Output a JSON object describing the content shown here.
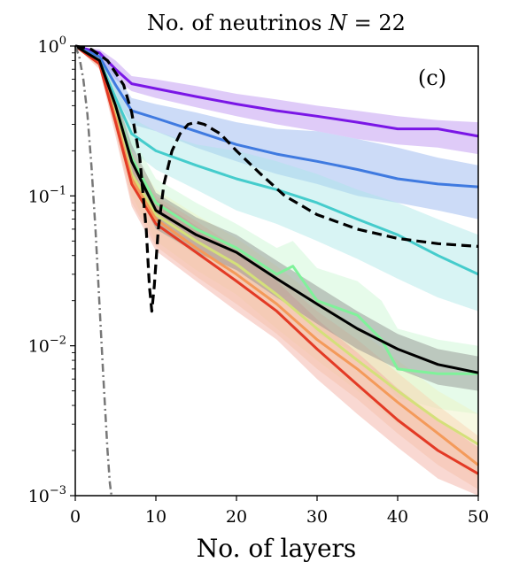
{
  "chart_data": {
    "type": "line",
    "title": "No. of neutrinos N = 22",
    "title_parts": {
      "prefix": "No. of neutrinos ",
      "var": "N",
      "suffix": " = 22"
    },
    "panel_label": "(c)",
    "xlabel": "No. of layers",
    "ylabel": "",
    "xlim": [
      0,
      50
    ],
    "ylim": [
      0.001,
      1
    ],
    "yscale": "log",
    "grid": false,
    "x_ticks": [
      0,
      10,
      20,
      30,
      40,
      50
    ],
    "x_tick_labels": [
      "0",
      "10",
      "20",
      "30",
      "40",
      "50"
    ],
    "y_ticks": [
      {
        "value": 1,
        "base": "10",
        "exp": "0"
      },
      {
        "value": 0.1,
        "base": "10",
        "exp": "−1"
      },
      {
        "value": 0.01,
        "base": "10",
        "exp": "−2"
      },
      {
        "value": 0.001,
        "base": "10",
        "exp": "−3"
      }
    ],
    "series": [
      {
        "color": "#7a16e6",
        "style": "solid",
        "band_color": "#b98cf0",
        "x": [
          0,
          3,
          5,
          7,
          10,
          15,
          20,
          25,
          30,
          35,
          40,
          45,
          50
        ],
        "y": [
          1,
          0.9,
          0.7,
          0.56,
          0.52,
          0.46,
          0.41,
          0.37,
          0.34,
          0.31,
          0.28,
          0.28,
          0.25
        ],
        "lower": [
          1,
          0.85,
          0.6,
          0.5,
          0.45,
          0.39,
          0.34,
          0.3,
          0.27,
          0.24,
          0.22,
          0.21,
          0.19
        ],
        "upper": [
          1,
          0.95,
          0.8,
          0.63,
          0.6,
          0.54,
          0.48,
          0.44,
          0.4,
          0.37,
          0.34,
          0.32,
          0.31
        ]
      },
      {
        "color": "#3f7ae0",
        "style": "solid",
        "band_color": "#8fb0ee",
        "x": [
          0,
          3,
          5,
          7,
          10,
          15,
          20,
          25,
          30,
          35,
          40,
          45,
          50
        ],
        "y": [
          1,
          0.85,
          0.55,
          0.37,
          0.33,
          0.27,
          0.22,
          0.19,
          0.17,
          0.15,
          0.13,
          0.12,
          0.115
        ],
        "lower": [
          1,
          0.8,
          0.45,
          0.3,
          0.27,
          0.21,
          0.17,
          0.14,
          0.12,
          0.1,
          0.09,
          0.08,
          0.07
        ],
        "upper": [
          1,
          0.92,
          0.65,
          0.45,
          0.41,
          0.36,
          0.31,
          0.28,
          0.27,
          0.24,
          0.21,
          0.18,
          0.16
        ]
      },
      {
        "color": "#45cccc",
        "style": "solid",
        "band_color": "#a8e6e6",
        "x": [
          0,
          3,
          5,
          7,
          10,
          15,
          20,
          25,
          30,
          35,
          40,
          45,
          50
        ],
        "y": [
          1,
          0.8,
          0.45,
          0.26,
          0.2,
          0.16,
          0.13,
          0.11,
          0.09,
          0.07,
          0.055,
          0.04,
          0.03
        ],
        "lower": [
          1,
          0.75,
          0.38,
          0.2,
          0.15,
          0.11,
          0.08,
          0.065,
          0.05,
          0.038,
          0.028,
          0.021,
          0.017
        ],
        "upper": [
          1,
          0.88,
          0.55,
          0.33,
          0.27,
          0.22,
          0.2,
          0.17,
          0.14,
          0.11,
          0.09,
          0.07,
          0.055
        ]
      },
      {
        "color": "#7ff29a",
        "style": "solid",
        "band_color": "#c8f7d0",
        "x": [
          0,
          3,
          5,
          7,
          10,
          15,
          20,
          25,
          27,
          30,
          35,
          38,
          40,
          45,
          50
        ],
        "y": [
          1,
          0.8,
          0.4,
          0.18,
          0.09,
          0.06,
          0.045,
          0.03,
          0.034,
          0.02,
          0.016,
          0.011,
          0.007,
          0.0065,
          0.0065
        ],
        "lower": [
          1,
          0.75,
          0.33,
          0.13,
          0.06,
          0.04,
          0.03,
          0.02,
          0.022,
          0.012,
          0.009,
          0.006,
          0.0045,
          0.0038,
          0.0035
        ],
        "upper": [
          1,
          0.88,
          0.5,
          0.25,
          0.13,
          0.09,
          0.065,
          0.045,
          0.05,
          0.033,
          0.027,
          0.02,
          0.013,
          0.011,
          0.01
        ]
      },
      {
        "color": "#d4e07a",
        "style": "solid",
        "band_color": "#eef2c2",
        "x": [
          0,
          3,
          5,
          7,
          10,
          15,
          20,
          25,
          30,
          35,
          40,
          45,
          50
        ],
        "y": [
          1,
          0.78,
          0.35,
          0.14,
          0.075,
          0.05,
          0.035,
          0.022,
          0.013,
          0.008,
          0.005,
          0.0032,
          0.0022
        ],
        "lower": [
          1,
          0.72,
          0.28,
          0.1,
          0.05,
          0.032,
          0.022,
          0.013,
          0.008,
          0.005,
          0.003,
          0.002,
          0.0013
        ],
        "upper": [
          1,
          0.85,
          0.45,
          0.2,
          0.11,
          0.075,
          0.052,
          0.034,
          0.021,
          0.013,
          0.008,
          0.005,
          0.0035
        ]
      },
      {
        "color": "#f49a5a",
        "style": "solid",
        "band_color": "#f8d0b0",
        "x": [
          0,
          3,
          5,
          7,
          10,
          15,
          20,
          25,
          30,
          35,
          40,
          45,
          50
        ],
        "y": [
          1,
          0.77,
          0.33,
          0.13,
          0.07,
          0.045,
          0.03,
          0.019,
          0.011,
          0.007,
          0.0042,
          0.0026,
          0.0016
        ],
        "lower": [
          1,
          0.72,
          0.27,
          0.09,
          0.046,
          0.029,
          0.019,
          0.012,
          0.007,
          0.0044,
          0.0026,
          0.0016,
          0.0011
        ],
        "upper": [
          1,
          0.83,
          0.42,
          0.18,
          0.1,
          0.068,
          0.045,
          0.029,
          0.017,
          0.011,
          0.0066,
          0.004,
          0.0025
        ]
      },
      {
        "color": "#e33a25",
        "style": "solid",
        "band_color": "#f2a89c",
        "x": [
          0,
          3,
          5,
          7,
          10,
          15,
          20,
          25,
          30,
          35,
          40,
          45,
          50
        ],
        "y": [
          1,
          0.76,
          0.31,
          0.12,
          0.065,
          0.042,
          0.027,
          0.017,
          0.0095,
          0.0055,
          0.0032,
          0.002,
          0.0014
        ],
        "lower": [
          1,
          0.7,
          0.25,
          0.085,
          0.043,
          0.027,
          0.017,
          0.011,
          0.006,
          0.0035,
          0.0021,
          0.0013,
          0.001
        ],
        "upper": [
          1,
          0.82,
          0.4,
          0.17,
          0.095,
          0.063,
          0.042,
          0.027,
          0.015,
          0.009,
          0.0052,
          0.0032,
          0.0021
        ]
      },
      {
        "color": "#000000",
        "style": "solid",
        "band_color": "#8a8a8a",
        "x": [
          0,
          3,
          5,
          7,
          10,
          15,
          20,
          25,
          30,
          35,
          40,
          45,
          50
        ],
        "y": [
          1,
          0.8,
          0.4,
          0.17,
          0.08,
          0.055,
          0.042,
          0.028,
          0.019,
          0.013,
          0.0095,
          0.0075,
          0.0066
        ],
        "lower": [
          1,
          0.76,
          0.34,
          0.13,
          0.06,
          0.042,
          0.032,
          0.021,
          0.014,
          0.0095,
          0.007,
          0.0055,
          0.005
        ],
        "upper": [
          1,
          0.85,
          0.47,
          0.22,
          0.105,
          0.072,
          0.055,
          0.037,
          0.025,
          0.017,
          0.012,
          0.0095,
          0.0085
        ]
      },
      {
        "color": "#000000",
        "style": "dashed",
        "x": [
          0,
          2,
          4,
          6,
          7,
          8,
          8.8,
          9.2,
          9.5,
          9.8,
          10.3,
          11,
          12,
          13,
          14,
          15,
          16,
          18,
          20,
          23,
          26,
          30,
          35,
          40,
          45,
          50
        ],
        "y": [
          1,
          0.95,
          0.8,
          0.55,
          0.36,
          0.18,
          0.06,
          0.025,
          0.017,
          0.025,
          0.06,
          0.12,
          0.2,
          0.26,
          0.3,
          0.31,
          0.3,
          0.26,
          0.2,
          0.14,
          0.1,
          0.075,
          0.06,
          0.052,
          0.048,
          0.046
        ]
      },
      {
        "color": "#777777",
        "style": "dashdot",
        "x": [
          0,
          0.5,
          1,
          1.5,
          2,
          2.5,
          3,
          3.5,
          4,
          4.3,
          4.5
        ],
        "y": [
          1,
          0.85,
          0.6,
          0.35,
          0.16,
          0.06,
          0.019,
          0.006,
          0.002,
          0.0012,
          0.001
        ]
      }
    ]
  }
}
